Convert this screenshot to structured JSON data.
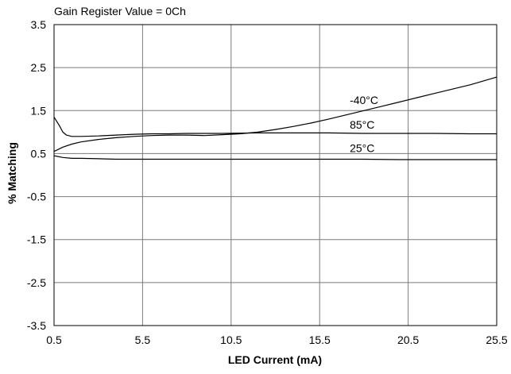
{
  "chart_data": {
    "type": "line",
    "title": "Gain Register Value = 0Ch",
    "xlabel": "LED Current (mA)",
    "ylabel": "% Matching",
    "xlim": [
      0.5,
      25.5
    ],
    "ylim": [
      -3.5,
      3.5
    ],
    "x_ticks": [
      "0.5",
      "5.5",
      "10.5",
      "15.5",
      "20.5",
      "25.5"
    ],
    "y_ticks": [
      "3.5",
      "2.5",
      "1.5",
      "0.5",
      "-0.5",
      "-1.5",
      "-2.5",
      "-3.5"
    ],
    "grid": true,
    "series": [
      {
        "name": "-40°C",
        "x": [
          0.5,
          1,
          1.5,
          2,
          3,
          4,
          5,
          6,
          7,
          8,
          9,
          10,
          11,
          12,
          13,
          14,
          15,
          16,
          17,
          18,
          19,
          20,
          21,
          22,
          23,
          24,
          25.5
        ],
        "y": [
          0.55,
          0.65,
          0.72,
          0.77,
          0.83,
          0.87,
          0.9,
          0.92,
          0.93,
          0.93,
          0.92,
          0.94,
          0.96,
          1.0,
          1.06,
          1.13,
          1.21,
          1.3,
          1.4,
          1.5,
          1.6,
          1.7,
          1.8,
          1.9,
          2.0,
          2.1,
          2.28
        ]
      },
      {
        "name": "85°C",
        "x": [
          0.5,
          0.8,
          1.0,
          1.2,
          1.5,
          2,
          3,
          4,
          5,
          6,
          7,
          8,
          9,
          10,
          12,
          14,
          16,
          18,
          20,
          22,
          24,
          25.5
        ],
        "y": [
          1.35,
          1.15,
          1.0,
          0.93,
          0.9,
          0.9,
          0.91,
          0.93,
          0.95,
          0.96,
          0.96,
          0.97,
          0.97,
          0.97,
          0.98,
          0.98,
          0.98,
          0.97,
          0.97,
          0.97,
          0.96,
          0.96
        ]
      },
      {
        "name": "25°C",
        "x": [
          0.5,
          1.0,
          1.5,
          2,
          3,
          4,
          6,
          8,
          10,
          12,
          14,
          16,
          18,
          20,
          22,
          25.5
        ],
        "y": [
          0.45,
          0.41,
          0.39,
          0.39,
          0.38,
          0.37,
          0.37,
          0.37,
          0.37,
          0.37,
          0.37,
          0.37,
          0.37,
          0.36,
          0.36,
          0.36
        ]
      }
    ],
    "series_labels": [
      {
        "text": "-40°C",
        "x": 17.2,
        "y": 1.75
      },
      {
        "text": "85°C",
        "x": 17.2,
        "y": 1.17
      },
      {
        "text": "25°C",
        "x": 17.2,
        "y": 0.63
      }
    ]
  }
}
